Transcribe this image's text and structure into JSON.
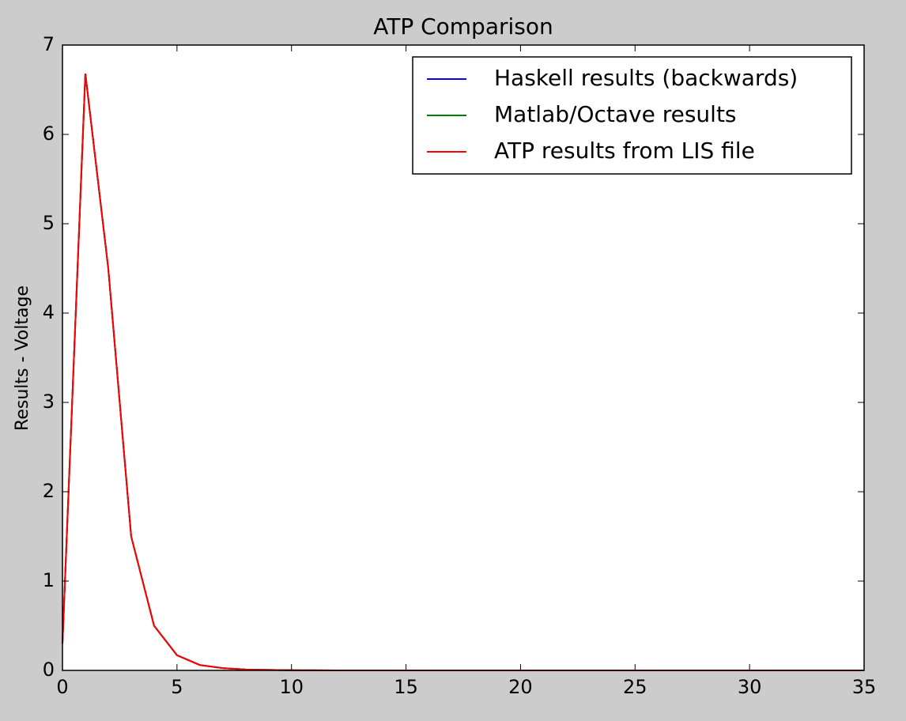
{
  "chart_data": {
    "type": "line",
    "title": "ATP Comparison",
    "y_label": "Results - Voltage",
    "x": [
      0,
      1,
      2,
      3,
      4,
      5,
      6,
      7,
      8,
      9,
      10,
      11,
      12,
      13,
      14,
      15,
      16,
      17,
      18,
      19,
      20,
      21,
      22,
      23,
      24,
      25,
      26,
      27,
      28,
      29,
      30,
      31,
      32,
      33,
      34,
      35
    ],
    "series": [
      {
        "name": "Haskell results (backwards)",
        "color": "#0000ff",
        "values": [
          0.3,
          6.68,
          4.5,
          1.5,
          0.5,
          0.17,
          0.06,
          0.025,
          0.01,
          0.005,
          0.002,
          0.001,
          0,
          0,
          0,
          0,
          0,
          0,
          0,
          0,
          0,
          0,
          0,
          0,
          0,
          0,
          0,
          0,
          0,
          0,
          0,
          0,
          0,
          0,
          0,
          0
        ]
      },
      {
        "name": "Matlab/Octave results",
        "color": "#008000",
        "values": [
          0.3,
          6.68,
          4.5,
          1.5,
          0.5,
          0.17,
          0.06,
          0.025,
          0.01,
          0.005,
          0.002,
          0.001,
          0,
          0,
          0,
          0,
          0,
          0,
          0,
          0,
          0,
          0,
          0,
          0,
          0,
          0,
          0,
          0,
          0,
          0,
          0,
          0,
          0,
          0,
          0,
          0
        ]
      },
      {
        "name": "ATP results from LIS file",
        "color": "#ff0000",
        "values": [
          0.3,
          6.68,
          4.5,
          1.5,
          0.5,
          0.17,
          0.06,
          0.025,
          0.01,
          0.005,
          0.002,
          0.001,
          0,
          0,
          0,
          0,
          0,
          0,
          0,
          0,
          0,
          0,
          0,
          0,
          0,
          0,
          0,
          0,
          0,
          0,
          0,
          0,
          0,
          0,
          0,
          0
        ]
      }
    ],
    "xlim": [
      0,
      35
    ],
    "xticks": [
      0,
      5,
      10,
      15,
      20,
      25,
      30,
      35
    ],
    "ylim": [
      0,
      7
    ],
    "yticks": [
      0,
      1,
      2,
      3,
      4,
      5,
      6,
      7
    ],
    "legend": "upper right",
    "grid": false
  }
}
